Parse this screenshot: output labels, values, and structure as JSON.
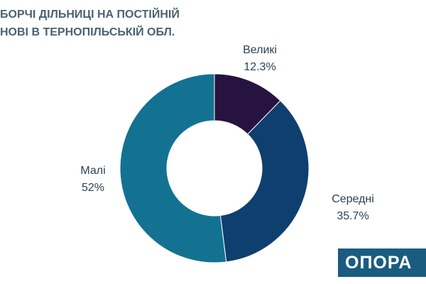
{
  "title_lines": [
    "БОРЧІ ДІЛЬНИЦІ НА ПОСТІЙНІЙ",
    "НОВІ В ТЕРНОПІЛЬСЬКІЙ ОБЛ."
  ],
  "logo": "ОПОРА",
  "colors": {
    "title": "#4a6272",
    "label": "#2b4257",
    "logo_bg": "#1a5c7f"
  },
  "chart_data": {
    "type": "pie",
    "variant": "donut",
    "title": "",
    "slices": [
      {
        "name": "Великі",
        "value": 12.3,
        "label": "12.3%",
        "color": "#27133f"
      },
      {
        "name": "Середні",
        "value": 35.7,
        "label": "35.7%",
        "color": "#0f3f6e"
      },
      {
        "name": "Малі",
        "value": 52,
        "label": "52%",
        "color": "#137291"
      }
    ],
    "legend": "none"
  }
}
